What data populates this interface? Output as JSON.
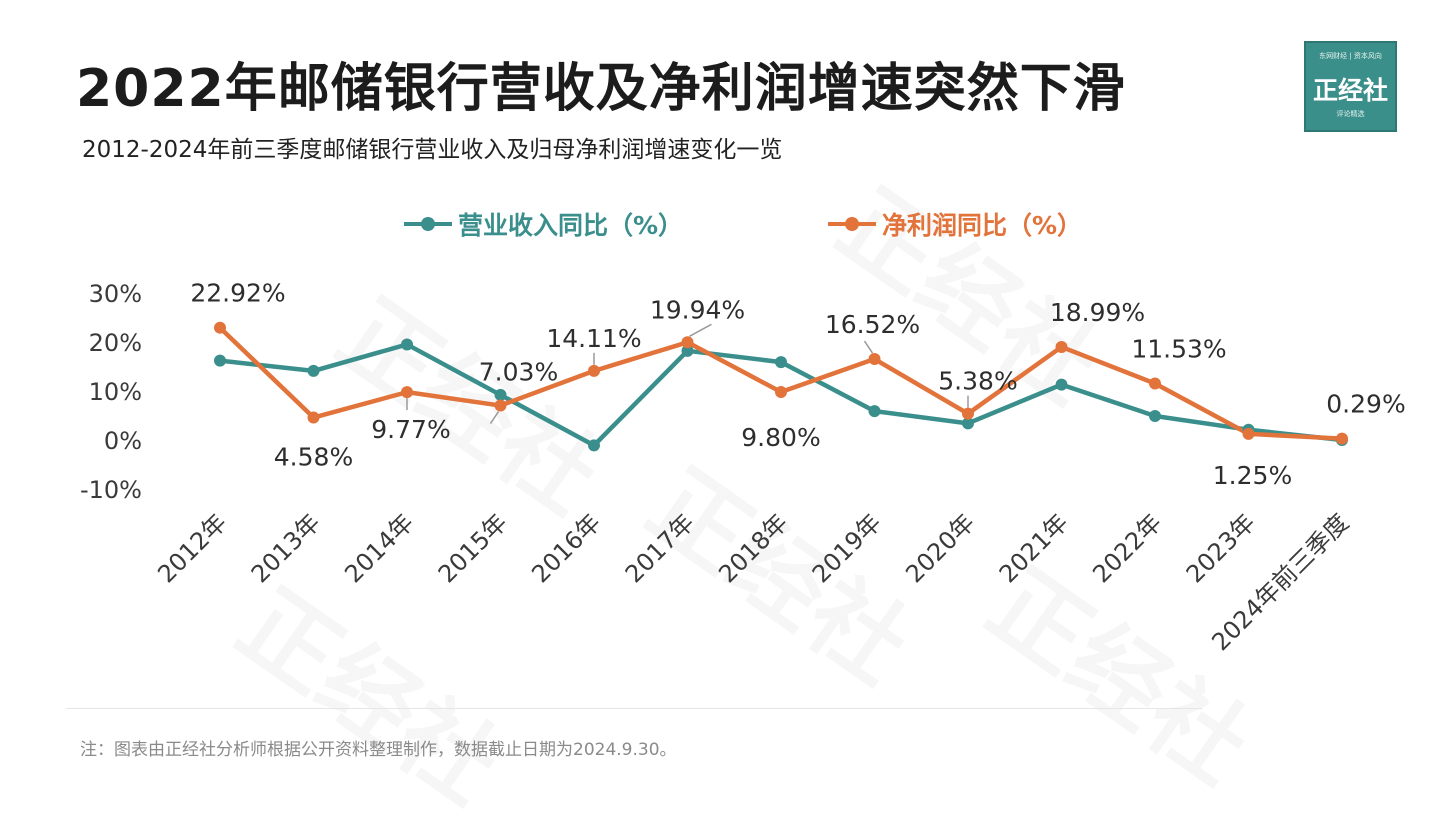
{
  "header": {
    "title": "2022年邮储银行营收及净利润增速突然下滑",
    "subtitle": "2012-2024年前三季度邮储银行营业收入及归母净利润增速变化一览"
  },
  "logo": {
    "top_text": "东网财经 | 资本风向",
    "mark": "正经社",
    "bottom_text": "评论精选"
  },
  "watermark": "正经社",
  "footer": {
    "note": "注：图表由正经社分析师根据公开资料整理制作，数据截止日期为2024.9.30。"
  },
  "chart_data": {
    "type": "line",
    "categories": [
      "2012年",
      "2013年",
      "2014年",
      "2015年",
      "2016年",
      "2017年",
      "2018年",
      "2019年",
      "2020年",
      "2021年",
      "2022年",
      "2023年",
      "2024年前三季度"
    ],
    "series": [
      {
        "name": "营业收入同比（%）",
        "color": "#3a8f8c",
        "values": [
          16.2,
          14.1,
          19.5,
          9.2,
          -1.1,
          18.2,
          15.9,
          5.9,
          3.4,
          11.3,
          4.9,
          2.1,
          0.0
        ]
      },
      {
        "name": "净利润同比（%）",
        "color": "#e2733a",
        "values": [
          22.92,
          4.58,
          9.77,
          7.03,
          14.11,
          19.94,
          9.8,
          16.52,
          5.38,
          18.99,
          11.53,
          1.25,
          0.29
        ],
        "labels": [
          "22.92%",
          "4.58%",
          "9.77%",
          "7.03%",
          "14.11%",
          "19.94%",
          "9.80%",
          "16.52%",
          "5.38%",
          "18.99%",
          "11.53%",
          "1.25%",
          "0.29%"
        ]
      }
    ],
    "y_ticks": [
      "30%",
      "20%",
      "10%",
      "0%",
      "-10%"
    ],
    "y_tick_values": [
      30,
      20,
      10,
      0,
      -10
    ],
    "ylim": [
      -10,
      30
    ],
    "legend": "top-center",
    "grid": false
  }
}
